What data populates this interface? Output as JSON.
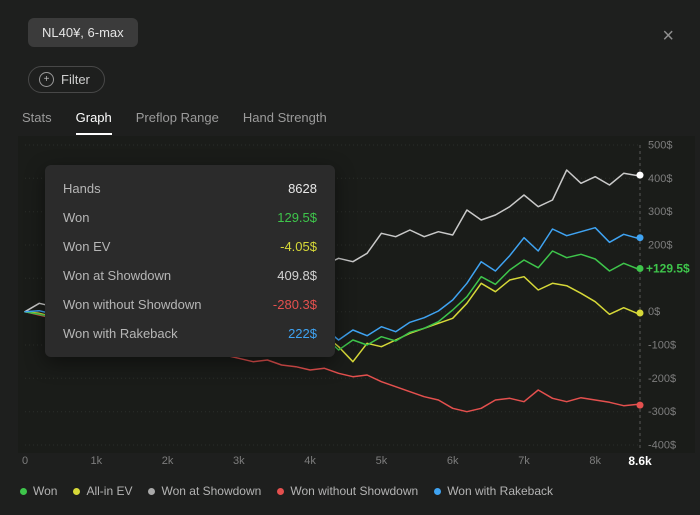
{
  "header": {
    "badge": "NL40¥, 6-max",
    "close_icon": "×"
  },
  "filter": {
    "label": "Filter",
    "plus_icon": "+"
  },
  "tabs": [
    {
      "label": "Stats",
      "active": false
    },
    {
      "label": "Graph",
      "active": true
    },
    {
      "label": "Preflop Range",
      "active": false
    },
    {
      "label": "Hand Strength",
      "active": false
    }
  ],
  "tooltip": {
    "rows": [
      {
        "label": "Hands",
        "value": "8628",
        "color": "#e8e8e8"
      },
      {
        "label": "Won",
        "value": "129.5$",
        "color": "#3ec54b"
      },
      {
        "label": "Won EV",
        "value": "-4.05$",
        "color": "#d6d838"
      },
      {
        "label": "Won at Showdown",
        "value": "409.8$",
        "color": "#d2d2d2"
      },
      {
        "label": "Won without Showdown",
        "value": "-280.3$",
        "color": "#e4504e"
      },
      {
        "label": "Won with Rakeback",
        "value": "222$",
        "color": "#3fa3f2"
      }
    ]
  },
  "legend": [
    {
      "label": "Won",
      "color": "#3ec54b"
    },
    {
      "label": "All-in EV",
      "color": "#d6d838"
    },
    {
      "label": "Won at Showdown",
      "color": "#a9a9a9"
    },
    {
      "label": "Won without Showdown",
      "color": "#e4504e"
    },
    {
      "label": "Won with Rakeback",
      "color": "#3fa3f2"
    }
  ],
  "chart_data": {
    "type": "line",
    "title": "Winnings graph",
    "xlabel": "hands",
    "ylabel": "$",
    "xmax_hands": 8628,
    "ylim": [
      -400,
      500
    ],
    "grid_step": 100,
    "current_value": 129.5,
    "current_value_label": "+129.5$",
    "current_value_color": "#3ec54b",
    "xmax_label": "8.6k",
    "xticks": [
      {
        "label": "0",
        "hands": 0
      },
      {
        "label": "1k",
        "hands": 1000
      },
      {
        "label": "2k",
        "hands": 2000
      },
      {
        "label": "3k",
        "hands": 3000
      },
      {
        "label": "4k",
        "hands": 4000
      },
      {
        "label": "5k",
        "hands": 5000
      },
      {
        "label": "6k",
        "hands": 6000
      },
      {
        "label": "7k",
        "hands": 7000
      },
      {
        "label": "8k",
        "hands": 8000
      }
    ],
    "yticks": [
      {
        "label": "500$",
        "value": 500
      },
      {
        "label": "400$",
        "value": 400
      },
      {
        "label": "300$",
        "value": 300
      },
      {
        "label": "200$",
        "value": 200
      },
      {
        "label": "0$",
        "value": 0
      },
      {
        "label": "-100$",
        "value": -100
      },
      {
        "label": "-200$",
        "value": -200
      },
      {
        "label": "-300$",
        "value": -300
      },
      {
        "label": "-400$",
        "value": -400
      }
    ],
    "x_hands": [
      0,
      200,
      400,
      600,
      800,
      1000,
      1200,
      1400,
      1600,
      1800,
      2000,
      2200,
      2400,
      2600,
      2800,
      3000,
      3200,
      3400,
      3600,
      3800,
      4000,
      4200,
      4400,
      4600,
      4800,
      5000,
      5200,
      5400,
      5600,
      5800,
      6000,
      6200,
      6400,
      6600,
      6800,
      7000,
      7200,
      7400,
      7600,
      7800,
      8000,
      8200,
      8400,
      8600,
      8628
    ],
    "series": [
      {
        "name": "Won at Showdown",
        "color": "#c9c9c9",
        "endpoint_dot": "#ffffff",
        "final": 409.8,
        "values": [
          0,
          25,
          15,
          45,
          35,
          60,
          50,
          75,
          60,
          85,
          75,
          95,
          85,
          105,
          95,
          110,
          100,
          125,
          115,
          140,
          150,
          140,
          160,
          150,
          175,
          235,
          225,
          245,
          225,
          240,
          230,
          305,
          275,
          290,
          315,
          350,
          315,
          335,
          425,
          385,
          405,
          380,
          415,
          408,
          409.8
        ]
      },
      {
        "name": "Won without Showdown",
        "color": "#e4504e",
        "final": -280.3,
        "values": [
          0,
          -10,
          -20,
          -15,
          -35,
          -45,
          -60,
          -55,
          -75,
          -85,
          -95,
          -90,
          -110,
          -120,
          -130,
          -140,
          -150,
          -145,
          -160,
          -165,
          -175,
          -170,
          -185,
          -195,
          -190,
          -210,
          -225,
          -240,
          -255,
          -265,
          -290,
          -300,
          -290,
          -265,
          -260,
          -270,
          -235,
          -260,
          -270,
          -258,
          -265,
          -272,
          -282,
          -278,
          -280.3
        ]
      },
      {
        "name": "All-in EV",
        "color": "#d6d838",
        "final": -4.05,
        "values": [
          0,
          -5,
          -15,
          -10,
          -20,
          -15,
          -30,
          -25,
          -35,
          -30,
          -45,
          -35,
          -50,
          -40,
          -55,
          -50,
          -65,
          -55,
          -70,
          -60,
          -80,
          -70,
          -105,
          -150,
          -95,
          -105,
          -85,
          -65,
          -50,
          -35,
          -20,
          25,
          85,
          60,
          95,
          105,
          65,
          85,
          78,
          55,
          30,
          -8,
          12,
          -6,
          -4.05
        ]
      },
      {
        "name": "Won",
        "color": "#3ec54b",
        "final": 129.5,
        "values": [
          0,
          -8,
          -18,
          -12,
          -25,
          -18,
          -32,
          -26,
          -40,
          -32,
          -50,
          -40,
          -55,
          -45,
          -62,
          -55,
          -70,
          -60,
          -78,
          -68,
          -88,
          -75,
          -115,
          -85,
          -100,
          -75,
          -88,
          -62,
          -50,
          -30,
          5,
          45,
          105,
          82,
          125,
          155,
          132,
          182,
          162,
          172,
          158,
          122,
          145,
          128,
          129.5
        ]
      },
      {
        "name": "Won with Rakeback",
        "color": "#3fa3f2",
        "final": 222,
        "values": [
          0,
          3,
          -8,
          0,
          -12,
          -5,
          -18,
          -10,
          -22,
          -15,
          -30,
          -20,
          -35,
          -25,
          -42,
          -32,
          -48,
          -38,
          -55,
          -45,
          -60,
          -50,
          -85,
          -55,
          -72,
          -45,
          -60,
          -32,
          -18,
          2,
          35,
          85,
          150,
          122,
          168,
          222,
          182,
          248,
          228,
          240,
          252,
          208,
          232,
          220,
          222
        ]
      }
    ]
  }
}
